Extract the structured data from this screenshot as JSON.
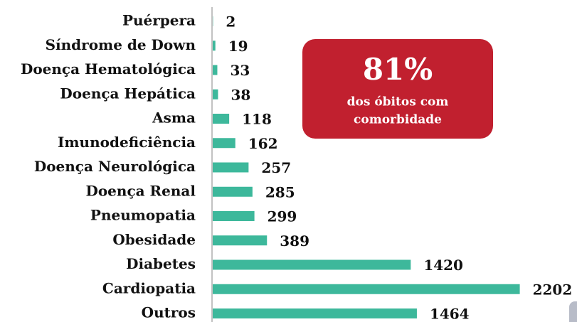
{
  "chart_data": {
    "type": "bar",
    "orientation": "horizontal",
    "categories": [
      "Puérpera",
      "Síndrome de Down",
      "Doença Hematológica",
      "Doença Hepática",
      "Asma",
      "Imunodeficiência",
      "Doença Neurológica",
      "Doença Renal",
      "Pneumopatia",
      "Obesidade",
      "Diabetes",
      "Cardiopatia",
      "Outros"
    ],
    "values": [
      2,
      19,
      33,
      38,
      118,
      162,
      257,
      285,
      299,
      389,
      1420,
      2202,
      1464
    ],
    "color": "#3db89b",
    "callout": {
      "value": {
        "value": 81,
        "label": "81%"
      },
      "lines": [
        "dos óbitos com",
        "comorbidade"
      ],
      "color": "#c1202f"
    }
  }
}
